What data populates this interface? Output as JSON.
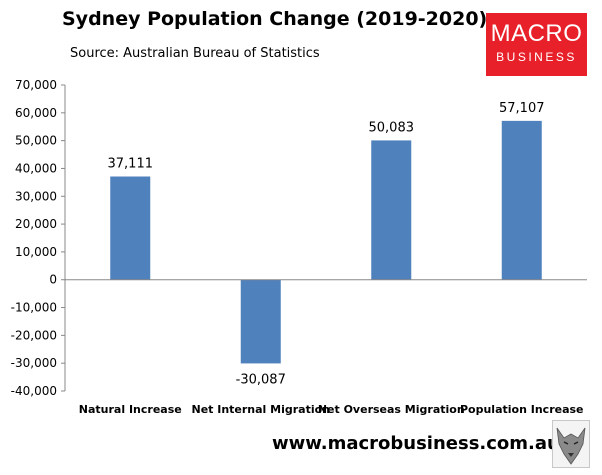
{
  "header": {
    "title": "Sydney Population Change (2019-2020)",
    "subtitle": "Source: Australian Bureau of Statistics"
  },
  "logo": {
    "line1": "MACRO",
    "line2": "BUSINESS",
    "color": "#e8202a"
  },
  "footer": {
    "url": "www.macrobusiness.com.au",
    "mascot_icon": "wolf-icon"
  },
  "chart_data": {
    "type": "bar",
    "categories": [
      "Natural Increase",
      "Net Internal Migration",
      "Net Overseas Migration",
      "Population Increase"
    ],
    "values": [
      37111,
      -30087,
      50083,
      57107
    ],
    "data_labels": [
      "37,111",
      "-30,087",
      "50,083",
      "57,107"
    ],
    "title": "Sydney Population Change (2019-2020)",
    "subtitle": "Source: Australian Bureau of Statistics",
    "ylim": [
      -40000,
      70000
    ],
    "yticks": [
      70000,
      60000,
      50000,
      40000,
      30000,
      20000,
      10000,
      0,
      -10000,
      -20000,
      -30000,
      -40000
    ],
    "ytick_labels": [
      "70,000",
      "60,000",
      "50,000",
      "40,000",
      "30,000",
      "20,000",
      "10,000",
      "0",
      "-10,000",
      "-20,000",
      "-30,000",
      "-40,000"
    ],
    "grid": false,
    "legend": "none",
    "bar_color": "#4f81bd"
  }
}
